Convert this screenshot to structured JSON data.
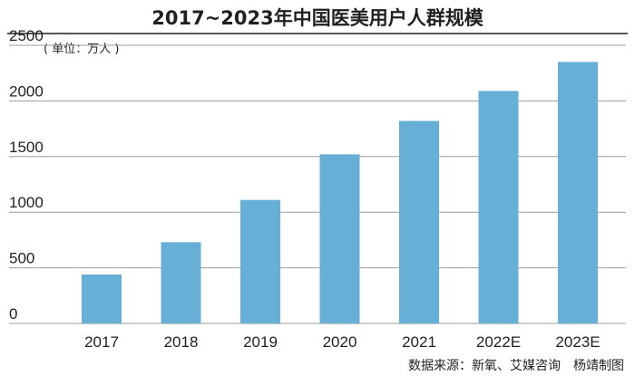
{
  "chart_data": {
    "type": "bar",
    "title": "2017~2023年中国医美用户人群规模",
    "unit_label": "( 单位：万人 )",
    "categories": [
      "2017",
      "2018",
      "2019",
      "2020",
      "2021",
      "2022E",
      "2023E"
    ],
    "values": [
      440,
      730,
      1110,
      1520,
      1820,
      2090,
      2350
    ],
    "ylim": [
      0,
      2500
    ],
    "yticks": [
      "0",
      "500",
      "1000",
      "1500",
      "2000",
      "2500"
    ],
    "grid": true,
    "bar_color": "#66afd6",
    "grid_color": "#9b9b9b",
    "source": "数据来源：新氧、艾媒咨询　杨靖制图"
  }
}
